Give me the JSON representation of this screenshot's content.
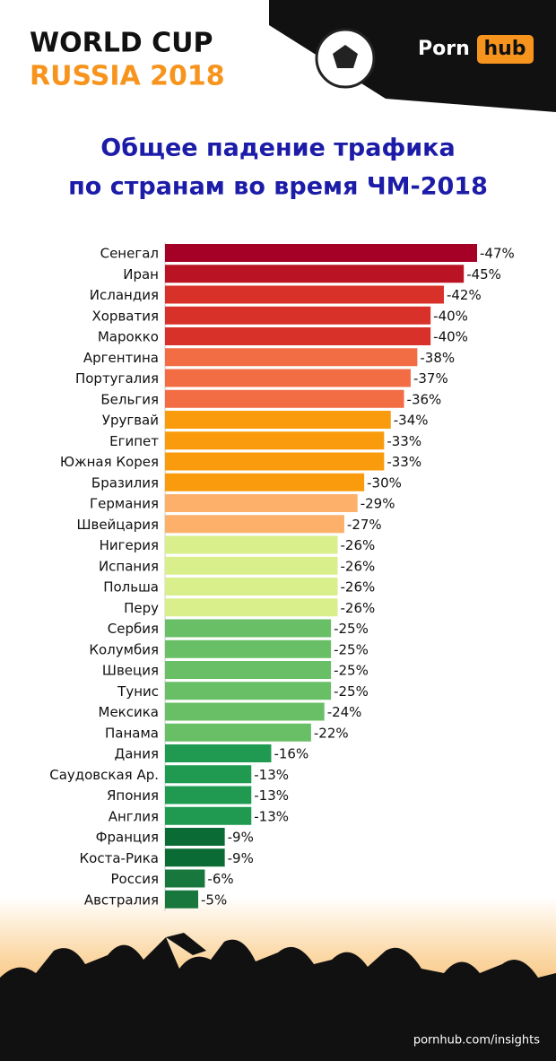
{
  "header": {
    "line1": "WORLD CUP",
    "line2": "RUSSIA 2018",
    "logo_left": "Porn",
    "logo_right": "hub"
  },
  "footer": "pornhub.com/insights",
  "chart_data": {
    "type": "bar",
    "orientation": "horizontal",
    "title": [
      "Общее падение трафика",
      "по странам во время ЧМ-2018"
    ],
    "categories": [
      "Сенегал",
      "Иран",
      "Исландия",
      "Хорватия",
      "Марокко",
      "Аргентина",
      "Португалия",
      "Бельгия",
      "Уругвай",
      "Египет",
      "Южная Корея",
      "Бразилия",
      "Германия",
      "Швейцария",
      "Нигерия",
      "Испания",
      "Польша",
      "Перу",
      "Сербия",
      "Колумбия",
      "Швеция",
      "Тунис",
      "Мексика",
      "Панама",
      "Дания",
      "Саудовская Ар.",
      "Япония",
      "Англия",
      "Франция",
      "Коста-Рика",
      "Россия",
      "Австралия"
    ],
    "values": [
      -47,
      -45,
      -42,
      -40,
      -40,
      -38,
      -37,
      -36,
      -34,
      -33,
      -33,
      -30,
      -29,
      -27,
      -26,
      -26,
      -26,
      -26,
      -25,
      -25,
      -25,
      -25,
      -24,
      -22,
      -16,
      -13,
      -13,
      -13,
      -9,
      -9,
      -6,
      -5
    ],
    "value_labels": [
      "-47%",
      "-45%",
      "-42%",
      "-40%",
      "-40%",
      "-38%",
      "-37%",
      "-36%",
      "-34%",
      "-33%",
      "-33%",
      "-30%",
      "-29%",
      "-27%",
      "-26%",
      "-26%",
      "-26%",
      "-26%",
      "-25%",
      "-25%",
      "-25%",
      "-25%",
      "-24%",
      "-22%",
      "-16%",
      "-13%",
      "-13%",
      "-13%",
      "-9%",
      "-9%",
      "-6%",
      "-5%"
    ],
    "colors": [
      "#a50026",
      "#ba1424",
      "#d8312a",
      "#d8312a",
      "#d8312a",
      "#f26c44",
      "#f26c44",
      "#f26c44",
      "#f99b0c",
      "#f99b0c",
      "#f99b0c",
      "#f99b0c",
      "#fdb06a",
      "#fdb06a",
      "#d9ef8b",
      "#d9ef8b",
      "#d9ef8b",
      "#d9ef8b",
      "#69bf65",
      "#69bf65",
      "#69bf65",
      "#69bf65",
      "#69bf65",
      "#69bf65",
      "#1f9a50",
      "#1f9a50",
      "#1f9a50",
      "#1f9a50",
      "#0a6b35",
      "#0a6b35",
      "#18773c",
      "#18773c"
    ]
  }
}
